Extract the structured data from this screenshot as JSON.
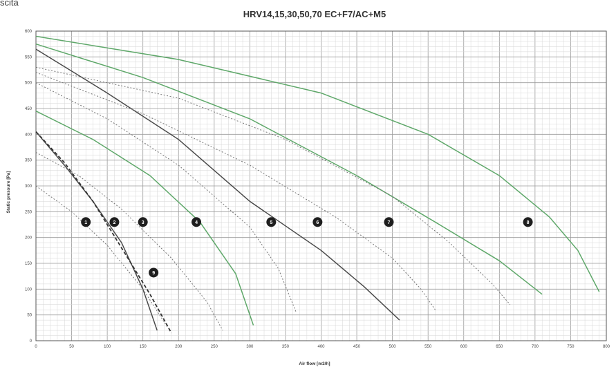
{
  "corner_text": "scita",
  "chart_data": {
    "type": "line",
    "title": "HRV14,15,30,50,70 EC+F7/AC+M5",
    "xlabel": "Air flow [m3/h]",
    "ylabel": "Static pressure [Pa]",
    "xlim": [
      0,
      800
    ],
    "ylim": [
      0,
      600
    ],
    "x_ticks": [
      0,
      50,
      100,
      150,
      200,
      250,
      300,
      350,
      400,
      450,
      500,
      550,
      600,
      650,
      700,
      750,
      800
    ],
    "y_ticks": [
      0,
      50,
      100,
      150,
      200,
      250,
      300,
      350,
      400,
      450,
      500,
      550,
      600
    ],
    "grid": true,
    "legend": "none",
    "series": [
      {
        "style": "solid",
        "color": "#4a4a4a",
        "x": [
          0,
          40,
          80,
          120,
          150,
          170
        ],
        "y": [
          405,
          340,
          270,
          190,
          100,
          20
        ]
      },
      {
        "style": "dashed",
        "color": "#333333",
        "x": [
          0,
          40,
          80,
          120,
          160,
          190
        ],
        "y": [
          405,
          345,
          270,
          180,
          90,
          15
        ]
      },
      {
        "style": "dotted",
        "color": "#777777",
        "x": [
          0,
          50,
          100,
          150,
          185
        ],
        "y": [
          300,
          250,
          185,
          100,
          25
        ]
      },
      {
        "style": "dotted",
        "color": "#777777",
        "x": [
          0,
          60,
          120,
          190,
          240,
          262
        ],
        "y": [
          365,
          320,
          255,
          160,
          75,
          20
        ]
      },
      {
        "style": "solid",
        "color": "#5fa86a",
        "x": [
          0,
          80,
          160,
          230,
          280,
          305
        ],
        "y": [
          445,
          390,
          320,
          230,
          130,
          30
        ]
      },
      {
        "style": "dotted",
        "color": "#777777",
        "x": [
          0,
          100,
          200,
          300,
          340,
          365
        ],
        "y": [
          500,
          430,
          340,
          220,
          140,
          55
        ]
      },
      {
        "style": "solid",
        "color": "#4a4a4a",
        "x": [
          0,
          100,
          200,
          300,
          400,
          460,
          510
        ],
        "y": [
          565,
          480,
          390,
          270,
          175,
          105,
          40
        ]
      },
      {
        "style": "dotted",
        "color": "#777777",
        "x": [
          0,
          150,
          300,
          420,
          500,
          540,
          560
        ],
        "y": [
          520,
          440,
          340,
          240,
          160,
          100,
          60
        ]
      },
      {
        "style": "solid",
        "color": "#5fa86a",
        "x": [
          0,
          150,
          300,
          450,
          560,
          650,
          710
        ],
        "y": [
          575,
          510,
          430,
          320,
          230,
          155,
          90
        ]
      },
      {
        "style": "dotted",
        "color": "#777777",
        "x": [
          0,
          200,
          350,
          500,
          580,
          640,
          665
        ],
        "y": [
          530,
          470,
          390,
          280,
          190,
          110,
          70
        ]
      },
      {
        "style": "solid",
        "color": "#5fa86a",
        "x": [
          0,
          200,
          400,
          550,
          650,
          720,
          760,
          790
        ],
        "y": [
          590,
          545,
          480,
          400,
          320,
          240,
          175,
          95
        ]
      }
    ],
    "markers": [
      {
        "label": "1",
        "x": 70,
        "y": 230
      },
      {
        "label": "2",
        "x": 110,
        "y": 230
      },
      {
        "label": "3",
        "x": 150,
        "y": 230
      },
      {
        "label": "4",
        "x": 225,
        "y": 230
      },
      {
        "label": "5",
        "x": 330,
        "y": 230
      },
      {
        "label": "6",
        "x": 395,
        "y": 230
      },
      {
        "label": "7",
        "x": 495,
        "y": 230
      },
      {
        "label": "8",
        "x": 690,
        "y": 230
      },
      {
        "label": "9",
        "x": 165,
        "y": 132
      }
    ]
  }
}
